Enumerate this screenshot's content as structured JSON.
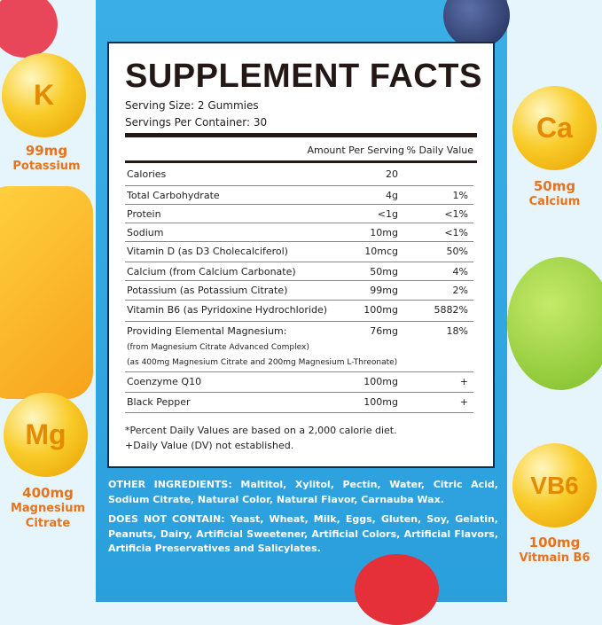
{
  "title": "SUPPLEMENT FACTS",
  "serving_size": "Serving Size: 2 Gummies",
  "servings_per_container": "Servings Per Container: 30",
  "headers": {
    "amount": "Amount Per Serving",
    "dv": "% Daily Value"
  },
  "rows": [
    {
      "name": "Calories",
      "amount": "20",
      "dv": ""
    },
    {
      "name": "Total Carbohydrate",
      "amount": "4g",
      "dv": "1%"
    },
    {
      "name": "Protein",
      "amount": "<1g",
      "dv": "<1%"
    },
    {
      "name": "Sodium",
      "amount": "10mg",
      "dv": "<1%"
    },
    {
      "name": "Vitamin D (as D3 Cholecalciferol)",
      "amount": "10mcg",
      "dv": "50%"
    },
    {
      "name": "Calcium (from Calcium Carbonate)",
      "amount": "50mg",
      "dv": "4%"
    },
    {
      "name": "Potassium (as Potassium Citrate)",
      "amount": "99mg",
      "dv": "2%"
    },
    {
      "name": "Vitamin B6 (as Pyridoxine Hydrochloride)",
      "amount": "100mg",
      "dv": "5882%"
    },
    {
      "name": "Providing Elemental Magnesium:",
      "sub1": "(from Magnesium Citrate Advanced Complex)",
      "sub2": "(as 400mg Magnesium Citrate and 200mg Magnesium L-Threonate)",
      "amount": "76mg",
      "dv": "18%"
    },
    {
      "name": "Coenzyme Q10",
      "amount": "100mg",
      "dv": "+"
    },
    {
      "name": "Black Pepper",
      "amount": "100mg",
      "dv": "+"
    }
  ],
  "footnotes": [
    "*Percent Daily Values are based on a 2,000 calorie diet.",
    "+Daily Value (DV) not established."
  ],
  "other_ingredients": {
    "label": "OTHER INGREDIENTS:",
    "text": " Maltitol, Xylitol, Pectin, Water, Citric Acid, Sodium Citrate, Natural Color, Natural Flavor, Carnauba Wax."
  },
  "does_not_contain": {
    "label": "DOES NOT CONTAIN:",
    "text": " Yeast, Wheat, Milk, Eggs, Gluten, Soy, Gelatin, Peanuts, Dairy, Artificial Sweetener, Artificial Colors, Artificial Flavors, Artificia Preservatives and Salicylates."
  },
  "minerals": [
    {
      "symbol": "K",
      "amount": "99mg",
      "name": "Potassium"
    },
    {
      "symbol": "Ca",
      "amount": "50mg",
      "name": "Calcium"
    },
    {
      "symbol": "Mg",
      "amount": "400mg",
      "name": "Magnesium Citrate"
    },
    {
      "symbol": "VB6",
      "amount": "100mg",
      "name": "Vitmain B6"
    }
  ],
  "colors": {
    "accent_blue": "#2aa7e4",
    "label_orange": "#e8731a",
    "text_dark": "#231815"
  }
}
